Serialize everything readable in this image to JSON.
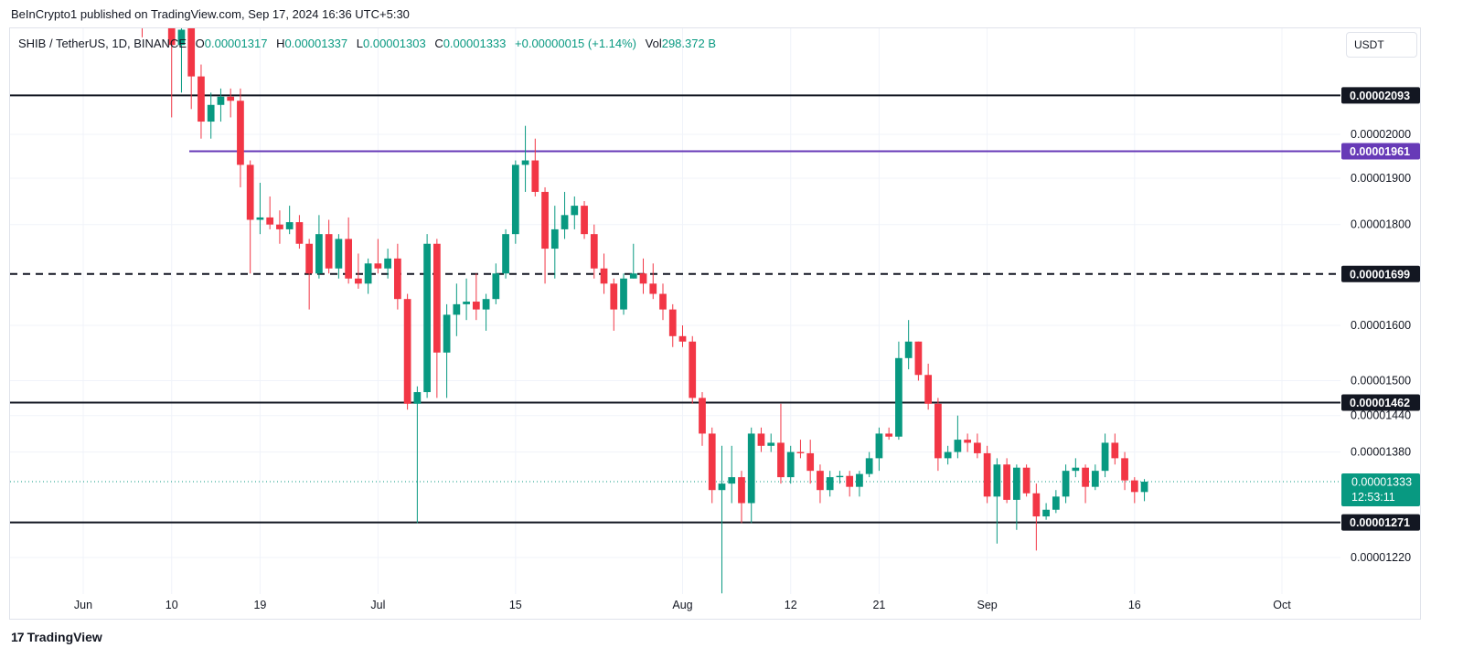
{
  "header": {
    "publisher": "BeInCrypto1 published on TradingView.com, Sep 17, 2024 16:36 UTC+5:30"
  },
  "legend": {
    "symbol": "SHIB / TetherUS, 1D, BINANCE",
    "o_label": "O",
    "o_value": "0.00001317",
    "h_label": "H",
    "h_value": "0.00001337",
    "l_label": "L",
    "l_value": "0.00001303",
    "c_label": "C",
    "c_value": "0.00001333",
    "change": "+0.00000015 (+1.14%)",
    "vol_label": "Vol",
    "vol_value": "298.372 B"
  },
  "currency_button": "USDT",
  "brand": {
    "logo": "17",
    "name": "TradingView"
  },
  "colors": {
    "up": "#089981",
    "down": "#f23645",
    "purple": "#673ab7",
    "black": "#131722"
  },
  "current": {
    "price": "0.00001333",
    "countdown": "12:53:11",
    "value": 1.333e-05
  },
  "levels": [
    {
      "value": 2.093e-05,
      "label": "0.00002093",
      "style": "solid",
      "color": "#131722"
    },
    {
      "value": 1.961e-05,
      "label": "0.00001961",
      "style": "solid",
      "color": "#673ab7"
    },
    {
      "value": 1.699e-05,
      "label": "0.00001699",
      "style": "dashed",
      "color": "#131722"
    },
    {
      "value": 1.462e-05,
      "label": "0.00001462",
      "style": "solid",
      "color": "#131722"
    },
    {
      "value": 1.271e-05,
      "label": "0.00001271",
      "style": "solid",
      "color": "#131722"
    }
  ],
  "chart_data": {
    "type": "candlestick",
    "axis_scale": "log",
    "ylim": [
      1.17e-05,
      2.28e-05
    ],
    "y_ticks": [
      {
        "value": 2e-05,
        "label": "0.00002000"
      },
      {
        "value": 1.9e-05,
        "label": "0.00001900"
      },
      {
        "value": 1.8e-05,
        "label": "0.00001800"
      },
      {
        "value": 1.6e-05,
        "label": "0.00001600"
      },
      {
        "value": 1.5e-05,
        "label": "0.00001500"
      },
      {
        "value": 1.44e-05,
        "label": "0.00001440"
      },
      {
        "value": 1.38e-05,
        "label": "0.00001380"
      },
      {
        "value": 1.22e-05,
        "label": "0.00001220"
      }
    ],
    "x_ticks": [
      {
        "date": "2024-06-01",
        "label": "Jun"
      },
      {
        "date": "2024-06-10",
        "label": "10"
      },
      {
        "date": "2024-06-19",
        "label": "19"
      },
      {
        "date": "2024-07-01",
        "label": "Jul"
      },
      {
        "date": "2024-07-15",
        "label": "15"
      },
      {
        "date": "2024-08-01",
        "label": "Aug"
      },
      {
        "date": "2024-08-12",
        "label": "12"
      },
      {
        "date": "2024-08-21",
        "label": "21"
      },
      {
        "date": "2024-09-01",
        "label": "Sep"
      },
      {
        "date": "2024-09-16",
        "label": "16"
      },
      {
        "date": "2024-10-01",
        "label": "Oct"
      }
    ],
    "candles": [
      {
        "date": "2024-06-07",
        "o": 2.5e-05,
        "h": 2.5e-05,
        "l": 2.24e-05,
        "c": 2.4e-05
      },
      {
        "date": "2024-06-10",
        "o": 2.3e-05,
        "h": 2.33e-05,
        "l": 2.04e-05,
        "c": 2.22e-05
      },
      {
        "date": "2024-06-11",
        "o": 2.22e-05,
        "h": 2.29e-05,
        "l": 2.1e-05,
        "c": 2.26e-05
      },
      {
        "date": "2024-06-12",
        "o": 2.29e-05,
        "h": 2.3e-05,
        "l": 2.06e-05,
        "c": 2.14e-05
      },
      {
        "date": "2024-06-13",
        "o": 2.14e-05,
        "h": 2.17e-05,
        "l": 1.99e-05,
        "c": 2.03e-05
      },
      {
        "date": "2024-06-14",
        "o": 2.03e-05,
        "h": 2.1e-05,
        "l": 1.99e-05,
        "c": 2.07e-05
      },
      {
        "date": "2024-06-15",
        "o": 2.07e-05,
        "h": 2.11e-05,
        "l": 2.03e-05,
        "c": 2.09e-05
      },
      {
        "date": "2024-06-16",
        "o": 2.09e-05,
        "h": 2.11e-05,
        "l": 2.04e-05,
        "c": 2.08e-05
      },
      {
        "date": "2024-06-17",
        "o": 2.08e-05,
        "h": 2.11e-05,
        "l": 1.88e-05,
        "c": 1.93e-05
      },
      {
        "date": "2024-06-18",
        "o": 1.93e-05,
        "h": 1.94e-05,
        "l": 1.7e-05,
        "c": 1.81e-05
      },
      {
        "date": "2024-06-19",
        "o": 1.81e-05,
        "h": 1.89e-05,
        "l": 1.78e-05,
        "c": 1.815e-05
      },
      {
        "date": "2024-06-20",
        "o": 1.815e-05,
        "h": 1.86e-05,
        "l": 1.79e-05,
        "c": 1.8e-05
      },
      {
        "date": "2024-06-21",
        "o": 1.8e-05,
        "h": 1.83e-05,
        "l": 1.76e-05,
        "c": 1.79e-05
      },
      {
        "date": "2024-06-22",
        "o": 1.79e-05,
        "h": 1.84e-05,
        "l": 1.78e-05,
        "c": 1.805e-05
      },
      {
        "date": "2024-06-23",
        "o": 1.805e-05,
        "h": 1.82e-05,
        "l": 1.75e-05,
        "c": 1.76e-05
      },
      {
        "date": "2024-06-24",
        "o": 1.76e-05,
        "h": 1.77e-05,
        "l": 1.63e-05,
        "c": 1.7e-05
      },
      {
        "date": "2024-06-25",
        "o": 1.7e-05,
        "h": 1.82e-05,
        "l": 1.69e-05,
        "c": 1.78e-05
      },
      {
        "date": "2024-06-26",
        "o": 1.78e-05,
        "h": 1.81e-05,
        "l": 1.7e-05,
        "c": 1.71e-05
      },
      {
        "date": "2024-06-27",
        "o": 1.71e-05,
        "h": 1.78e-05,
        "l": 1.69e-05,
        "c": 1.77e-05
      },
      {
        "date": "2024-06-28",
        "o": 1.77e-05,
        "h": 1.815e-05,
        "l": 1.68e-05,
        "c": 1.69e-05
      },
      {
        "date": "2024-06-29",
        "o": 1.69e-05,
        "h": 1.74e-05,
        "l": 1.67e-05,
        "c": 1.68e-05
      },
      {
        "date": "2024-06-30",
        "o": 1.68e-05,
        "h": 1.73e-05,
        "l": 1.66e-05,
        "c": 1.72e-05
      },
      {
        "date": "2024-07-01",
        "o": 1.72e-05,
        "h": 1.77e-05,
        "l": 1.7e-05,
        "c": 1.71e-05
      },
      {
        "date": "2024-07-02",
        "o": 1.71e-05,
        "h": 1.75e-05,
        "l": 1.69e-05,
        "c": 1.73e-05
      },
      {
        "date": "2024-07-03",
        "o": 1.73e-05,
        "h": 1.76e-05,
        "l": 1.63e-05,
        "c": 1.65e-05
      },
      {
        "date": "2024-07-04",
        "o": 1.65e-05,
        "h": 1.66e-05,
        "l": 1.45e-05,
        "c": 1.46e-05
      },
      {
        "date": "2024-07-05",
        "o": 1.46e-05,
        "h": 1.49e-05,
        "l": 1.27e-05,
        "c": 1.48e-05
      },
      {
        "date": "2024-07-06",
        "o": 1.48e-05,
        "h": 1.78e-05,
        "l": 1.47e-05,
        "c": 1.76e-05
      },
      {
        "date": "2024-07-07",
        "o": 1.76e-05,
        "h": 1.77e-05,
        "l": 1.47e-05,
        "c": 1.55e-05
      },
      {
        "date": "2024-07-08",
        "o": 1.55e-05,
        "h": 1.64e-05,
        "l": 1.47e-05,
        "c": 1.62e-05
      },
      {
        "date": "2024-07-09",
        "o": 1.62e-05,
        "h": 1.68e-05,
        "l": 1.58e-05,
        "c": 1.64e-05
      },
      {
        "date": "2024-07-10",
        "o": 1.64e-05,
        "h": 1.69e-05,
        "l": 1.61e-05,
        "c": 1.645e-05
      },
      {
        "date": "2024-07-11",
        "o": 1.645e-05,
        "h": 1.7e-05,
        "l": 1.61e-05,
        "c": 1.63e-05
      },
      {
        "date": "2024-07-12",
        "o": 1.63e-05,
        "h": 1.66e-05,
        "l": 1.59e-05,
        "c": 1.65e-05
      },
      {
        "date": "2024-07-13",
        "o": 1.65e-05,
        "h": 1.72e-05,
        "l": 1.64e-05,
        "c": 1.7e-05
      },
      {
        "date": "2024-07-14",
        "o": 1.7e-05,
        "h": 1.79e-05,
        "l": 1.69e-05,
        "c": 1.78e-05
      },
      {
        "date": "2024-07-15",
        "o": 1.78e-05,
        "h": 1.94e-05,
        "l": 1.76e-05,
        "c": 1.93e-05
      },
      {
        "date": "2024-07-16",
        "o": 1.93e-05,
        "h": 2.02e-05,
        "l": 1.87e-05,
        "c": 1.94e-05
      },
      {
        "date": "2024-07-17",
        "o": 1.94e-05,
        "h": 1.99e-05,
        "l": 1.86e-05,
        "c": 1.87e-05
      },
      {
        "date": "2024-07-18",
        "o": 1.87e-05,
        "h": 1.88e-05,
        "l": 1.68e-05,
        "c": 1.75e-05
      },
      {
        "date": "2024-07-19",
        "o": 1.75e-05,
        "h": 1.84e-05,
        "l": 1.69e-05,
        "c": 1.79e-05
      },
      {
        "date": "2024-07-20",
        "o": 1.79e-05,
        "h": 1.87e-05,
        "l": 1.77e-05,
        "c": 1.82e-05
      },
      {
        "date": "2024-07-21",
        "o": 1.82e-05,
        "h": 1.86e-05,
        "l": 1.79e-05,
        "c": 1.84e-05
      },
      {
        "date": "2024-07-22",
        "o": 1.84e-05,
        "h": 1.85e-05,
        "l": 1.77e-05,
        "c": 1.78e-05
      },
      {
        "date": "2024-07-23",
        "o": 1.78e-05,
        "h": 1.8e-05,
        "l": 1.69e-05,
        "c": 1.71e-05
      },
      {
        "date": "2024-07-24",
        "o": 1.71e-05,
        "h": 1.74e-05,
        "l": 1.66e-05,
        "c": 1.68e-05
      },
      {
        "date": "2024-07-25",
        "o": 1.68e-05,
        "h": 1.69e-05,
        "l": 1.59e-05,
        "c": 1.63e-05
      },
      {
        "date": "2024-07-26",
        "o": 1.63e-05,
        "h": 1.7e-05,
        "l": 1.62e-05,
        "c": 1.69e-05
      },
      {
        "date": "2024-07-27",
        "o": 1.69e-05,
        "h": 1.76e-05,
        "l": 1.69e-05,
        "c": 1.7e-05
      },
      {
        "date": "2024-07-28",
        "o": 1.7e-05,
        "h": 1.73e-05,
        "l": 1.66e-05,
        "c": 1.68e-05
      },
      {
        "date": "2024-07-29",
        "o": 1.68e-05,
        "h": 1.72e-05,
        "l": 1.65e-05,
        "c": 1.66e-05
      },
      {
        "date": "2024-07-30",
        "o": 1.66e-05,
        "h": 1.68e-05,
        "l": 1.61e-05,
        "c": 1.63e-05
      },
      {
        "date": "2024-07-31",
        "o": 1.63e-05,
        "h": 1.64e-05,
        "l": 1.56e-05,
        "c": 1.58e-05
      },
      {
        "date": "2024-08-01",
        "o": 1.58e-05,
        "h": 1.6e-05,
        "l": 1.56e-05,
        "c": 1.57e-05
      },
      {
        "date": "2024-08-02",
        "o": 1.57e-05,
        "h": 1.58e-05,
        "l": 1.46e-05,
        "c": 1.47e-05
      },
      {
        "date": "2024-08-03",
        "o": 1.47e-05,
        "h": 1.48e-05,
        "l": 1.39e-05,
        "c": 1.41e-05
      },
      {
        "date": "2024-08-04",
        "o": 1.41e-05,
        "h": 1.42e-05,
        "l": 1.3e-05,
        "c": 1.32e-05
      },
      {
        "date": "2024-08-05",
        "o": 1.32e-05,
        "h": 1.39e-05,
        "l": 1.17e-05,
        "c": 1.33e-05
      },
      {
        "date": "2024-08-06",
        "o": 1.33e-05,
        "h": 1.39e-05,
        "l": 1.3e-05,
        "c": 1.34e-05
      },
      {
        "date": "2024-08-07",
        "o": 1.34e-05,
        "h": 1.35e-05,
        "l": 1.27e-05,
        "c": 1.3e-05
      },
      {
        "date": "2024-08-08",
        "o": 1.3e-05,
        "h": 1.42e-05,
        "l": 1.27e-05,
        "c": 1.41e-05
      },
      {
        "date": "2024-08-09",
        "o": 1.41e-05,
        "h": 1.42e-05,
        "l": 1.38e-05,
        "c": 1.39e-05
      },
      {
        "date": "2024-08-10",
        "o": 1.39e-05,
        "h": 1.41e-05,
        "l": 1.38e-05,
        "c": 1.395e-05
      },
      {
        "date": "2024-08-11",
        "o": 1.395e-05,
        "h": 1.46e-05,
        "l": 1.33e-05,
        "c": 1.34e-05
      },
      {
        "date": "2024-08-12",
        "o": 1.34e-05,
        "h": 1.39e-05,
        "l": 1.33e-05,
        "c": 1.38e-05
      },
      {
        "date": "2024-08-13",
        "o": 1.38e-05,
        "h": 1.4e-05,
        "l": 1.37e-05,
        "c": 1.378e-05
      },
      {
        "date": "2024-08-14",
        "o": 1.378e-05,
        "h": 1.4e-05,
        "l": 1.33e-05,
        "c": 1.35e-05
      },
      {
        "date": "2024-08-15",
        "o": 1.35e-05,
        "h": 1.36e-05,
        "l": 1.3e-05,
        "c": 1.32e-05
      },
      {
        "date": "2024-08-16",
        "o": 1.32e-05,
        "h": 1.35e-05,
        "l": 1.31e-05,
        "c": 1.34e-05
      },
      {
        "date": "2024-08-17",
        "o": 1.34e-05,
        "h": 1.35e-05,
        "l": 1.33e-05,
        "c": 1.342e-05
      },
      {
        "date": "2024-08-18",
        "o": 1.342e-05,
        "h": 1.35e-05,
        "l": 1.31e-05,
        "c": 1.325e-05
      },
      {
        "date": "2024-08-19",
        "o": 1.325e-05,
        "h": 1.35e-05,
        "l": 1.31e-05,
        "c": 1.345e-05
      },
      {
        "date": "2024-08-20",
        "o": 1.345e-05,
        "h": 1.38e-05,
        "l": 1.34e-05,
        "c": 1.37e-05
      },
      {
        "date": "2024-08-21",
        "o": 1.37e-05,
        "h": 1.42e-05,
        "l": 1.35e-05,
        "c": 1.41e-05
      },
      {
        "date": "2024-08-22",
        "o": 1.41e-05,
        "h": 1.42e-05,
        "l": 1.4e-05,
        "c": 1.405e-05
      },
      {
        "date": "2024-08-23",
        "o": 1.405e-05,
        "h": 1.57e-05,
        "l": 1.4e-05,
        "c": 1.54e-05
      },
      {
        "date": "2024-08-24",
        "o": 1.54e-05,
        "h": 1.61e-05,
        "l": 1.52e-05,
        "c": 1.57e-05
      },
      {
        "date": "2024-08-25",
        "o": 1.57e-05,
        "h": 1.57e-05,
        "l": 1.5e-05,
        "c": 1.51e-05
      },
      {
        "date": "2024-08-26",
        "o": 1.51e-05,
        "h": 1.53e-05,
        "l": 1.45e-05,
        "c": 1.46e-05
      },
      {
        "date": "2024-08-27",
        "o": 1.46e-05,
        "h": 1.47e-05,
        "l": 1.35e-05,
        "c": 1.37e-05
      },
      {
        "date": "2024-08-28",
        "o": 1.37e-05,
        "h": 1.39e-05,
        "l": 1.36e-05,
        "c": 1.38e-05
      },
      {
        "date": "2024-08-29",
        "o": 1.38e-05,
        "h": 1.44e-05,
        "l": 1.37e-05,
        "c": 1.4e-05
      },
      {
        "date": "2024-08-30",
        "o": 1.4e-05,
        "h": 1.41e-05,
        "l": 1.38e-05,
        "c": 1.395e-05
      },
      {
        "date": "2024-08-31",
        "o": 1.395e-05,
        "h": 1.41e-05,
        "l": 1.37e-05,
        "c": 1.378e-05
      },
      {
        "date": "2024-09-01",
        "o": 1.378e-05,
        "h": 1.39e-05,
        "l": 1.3e-05,
        "c": 1.31e-05
      },
      {
        "date": "2024-09-02",
        "o": 1.31e-05,
        "h": 1.37e-05,
        "l": 1.24e-05,
        "c": 1.36e-05
      },
      {
        "date": "2024-09-03",
        "o": 1.36e-05,
        "h": 1.37e-05,
        "l": 1.3e-05,
        "c": 1.305e-05
      },
      {
        "date": "2024-09-04",
        "o": 1.305e-05,
        "h": 1.36e-05,
        "l": 1.26e-05,
        "c": 1.355e-05
      },
      {
        "date": "2024-09-05",
        "o": 1.355e-05,
        "h": 1.36e-05,
        "l": 1.31e-05,
        "c": 1.315e-05
      },
      {
        "date": "2024-09-06",
        "o": 1.315e-05,
        "h": 1.33e-05,
        "l": 1.23e-05,
        "c": 1.28e-05
      },
      {
        "date": "2024-09-07",
        "o": 1.28e-05,
        "h": 1.3e-05,
        "l": 1.275e-05,
        "c": 1.29e-05
      },
      {
        "date": "2024-09-08",
        "o": 1.29e-05,
        "h": 1.32e-05,
        "l": 1.285e-05,
        "c": 1.31e-05
      },
      {
        "date": "2024-09-09",
        "o": 1.31e-05,
        "h": 1.36e-05,
        "l": 1.3e-05,
        "c": 1.35e-05
      },
      {
        "date": "2024-09-10",
        "o": 1.35e-05,
        "h": 1.37e-05,
        "l": 1.34e-05,
        "c": 1.355e-05
      },
      {
        "date": "2024-09-11",
        "o": 1.355e-05,
        "h": 1.36e-05,
        "l": 1.3e-05,
        "c": 1.325e-05
      },
      {
        "date": "2024-09-12",
        "o": 1.325e-05,
        "h": 1.36e-05,
        "l": 1.32e-05,
        "c": 1.35e-05
      },
      {
        "date": "2024-09-13",
        "o": 1.35e-05,
        "h": 1.41e-05,
        "l": 1.34e-05,
        "c": 1.395e-05
      },
      {
        "date": "2024-09-14",
        "o": 1.395e-05,
        "h": 1.41e-05,
        "l": 1.36e-05,
        "c": 1.37e-05
      },
      {
        "date": "2024-09-15",
        "o": 1.37e-05,
        "h": 1.38e-05,
        "l": 1.32e-05,
        "c": 1.335e-05
      },
      {
        "date": "2024-09-16",
        "o": 1.335e-05,
        "h": 1.34e-05,
        "l": 1.3e-05,
        "c": 1.317e-05
      },
      {
        "date": "2024-09-17",
        "o": 1.317e-05,
        "h": 1.337e-05,
        "l": 1.303e-05,
        "c": 1.333e-05
      }
    ]
  }
}
